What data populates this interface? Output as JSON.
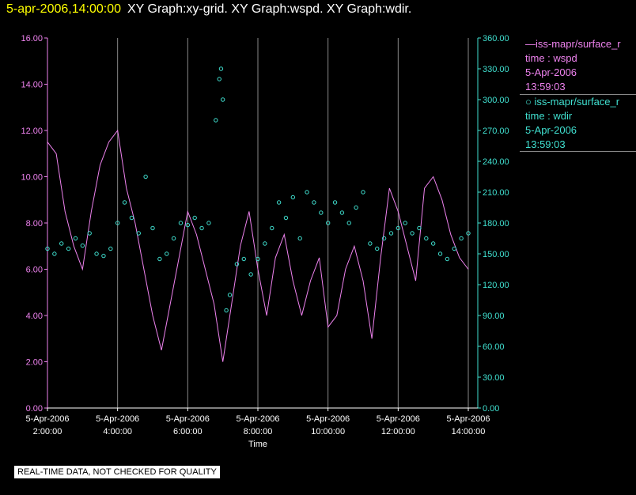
{
  "title": {
    "timestamp": "5-apr-2006,14:00:00",
    "graphs": "XY Graph:xy-grid.  XY Graph:wspd.  XY Graph:wdir."
  },
  "legend": [
    {
      "line1": "—iss-mapr/surface_r",
      "line2": "time : wspd",
      "line3": "5-Apr-2006",
      "line4": "13:59:03"
    },
    {
      "line1": "○ iss-mapr/surface_r",
      "line2": "time : wdir",
      "line3": "5-Apr-2006",
      "line4": "13:59:03"
    }
  ],
  "disclaimer": "REAL-TIME DATA, NOT CHECKED FOR QUALITY",
  "colors": {
    "wspd": "#ee82ee",
    "wdir": "#40e0d0",
    "grid": "#888888"
  },
  "chart_data": {
    "type": "line",
    "xlabel": "Time",
    "x_ticks": [
      {
        "date": "5-Apr-2006",
        "time": "2:00:00",
        "hour": 2
      },
      {
        "date": "5-Apr-2006",
        "time": "4:00:00",
        "hour": 4
      },
      {
        "date": "5-Apr-2006",
        "time": "6:00:00",
        "hour": 6
      },
      {
        "date": "5-Apr-2006",
        "time": "8:00:00",
        "hour": 8
      },
      {
        "date": "5-Apr-2006",
        "time": "10:00:00",
        "hour": 10
      },
      {
        "date": "5-Apr-2006",
        "time": "12:00:00",
        "hour": 12
      },
      {
        "date": "5-Apr-2006",
        "time": "14:00:00",
        "hour": 14
      }
    ],
    "xlim": [
      2,
      14
    ],
    "y_left": {
      "ticks": [
        "0.00",
        "2.00",
        "4.00",
        "6.00",
        "8.00",
        "10.00",
        "12.00",
        "14.00",
        "16.00"
      ],
      "lim": [
        0,
        16
      ]
    },
    "y_right": {
      "ticks": [
        "0.00",
        "30.00",
        "60.00",
        "90.00",
        "120.00",
        "150.00",
        "180.00",
        "210.00",
        "240.00",
        "270.00",
        "300.00",
        "330.00",
        "360.00"
      ],
      "lim": [
        0,
        360
      ]
    },
    "grid": "vertical",
    "series": [
      {
        "name": "wspd",
        "style": "line",
        "axis": "left",
        "x": [
          2.0,
          2.25,
          2.5,
          2.75,
          3.0,
          3.25,
          3.5,
          3.75,
          4.0,
          4.25,
          4.5,
          4.75,
          5.0,
          5.25,
          5.5,
          5.75,
          6.0,
          6.25,
          6.5,
          6.75,
          7.0,
          7.25,
          7.5,
          7.75,
          8.0,
          8.25,
          8.5,
          8.75,
          9.0,
          9.25,
          9.5,
          9.75,
          10.0,
          10.25,
          10.5,
          10.75,
          11.0,
          11.25,
          11.5,
          11.75,
          12.0,
          12.25,
          12.5,
          12.75,
          13.0,
          13.25,
          13.5,
          13.75,
          14.0
        ],
        "values": [
          11.5,
          11.0,
          8.5,
          7.0,
          6.0,
          8.5,
          10.5,
          11.5,
          12.0,
          9.5,
          8.0,
          6.0,
          4.0,
          2.5,
          4.5,
          6.5,
          8.5,
          7.5,
          6.0,
          4.5,
          2.0,
          4.5,
          7.0,
          8.5,
          6.0,
          4.0,
          6.5,
          7.5,
          5.5,
          4.0,
          5.5,
          6.5,
          3.5,
          4.0,
          6.0,
          7.0,
          5.5,
          3.0,
          6.5,
          9.5,
          8.5,
          7.0,
          5.5,
          9.5,
          10.0,
          9.0,
          7.5,
          6.5,
          6.0
        ]
      },
      {
        "name": "wdir",
        "style": "points",
        "axis": "right",
        "x": [
          2.0,
          2.2,
          2.4,
          2.6,
          2.8,
          3.0,
          3.2,
          3.4,
          3.6,
          3.8,
          4.0,
          4.2,
          4.4,
          4.6,
          4.8,
          5.0,
          5.2,
          5.4,
          5.6,
          5.8,
          6.0,
          6.2,
          6.4,
          6.6,
          6.8,
          6.9,
          6.95,
          7.0,
          7.1,
          7.2,
          7.4,
          7.6,
          7.8,
          8.0,
          8.2,
          8.4,
          8.6,
          8.8,
          9.0,
          9.2,
          9.4,
          9.6,
          9.8,
          10.0,
          10.2,
          10.4,
          10.6,
          10.8,
          11.0,
          11.2,
          11.4,
          11.6,
          11.8,
          12.0,
          12.2,
          12.4,
          12.6,
          12.8,
          13.0,
          13.2,
          13.4,
          13.6,
          13.8,
          14.0
        ],
        "values": [
          155,
          150,
          160,
          155,
          165,
          158,
          170,
          150,
          148,
          155,
          180,
          200,
          185,
          170,
          225,
          175,
          145,
          150,
          165,
          180,
          178,
          185,
          175,
          180,
          280,
          320,
          330,
          300,
          95,
          110,
          140,
          145,
          130,
          145,
          160,
          175,
          200,
          185,
          205,
          165,
          210,
          200,
          190,
          180,
          200,
          190,
          180,
          195,
          210,
          160,
          155,
          165,
          170,
          175,
          180,
          170,
          175,
          165,
          160,
          150,
          145,
          155,
          165,
          170
        ]
      }
    ]
  }
}
